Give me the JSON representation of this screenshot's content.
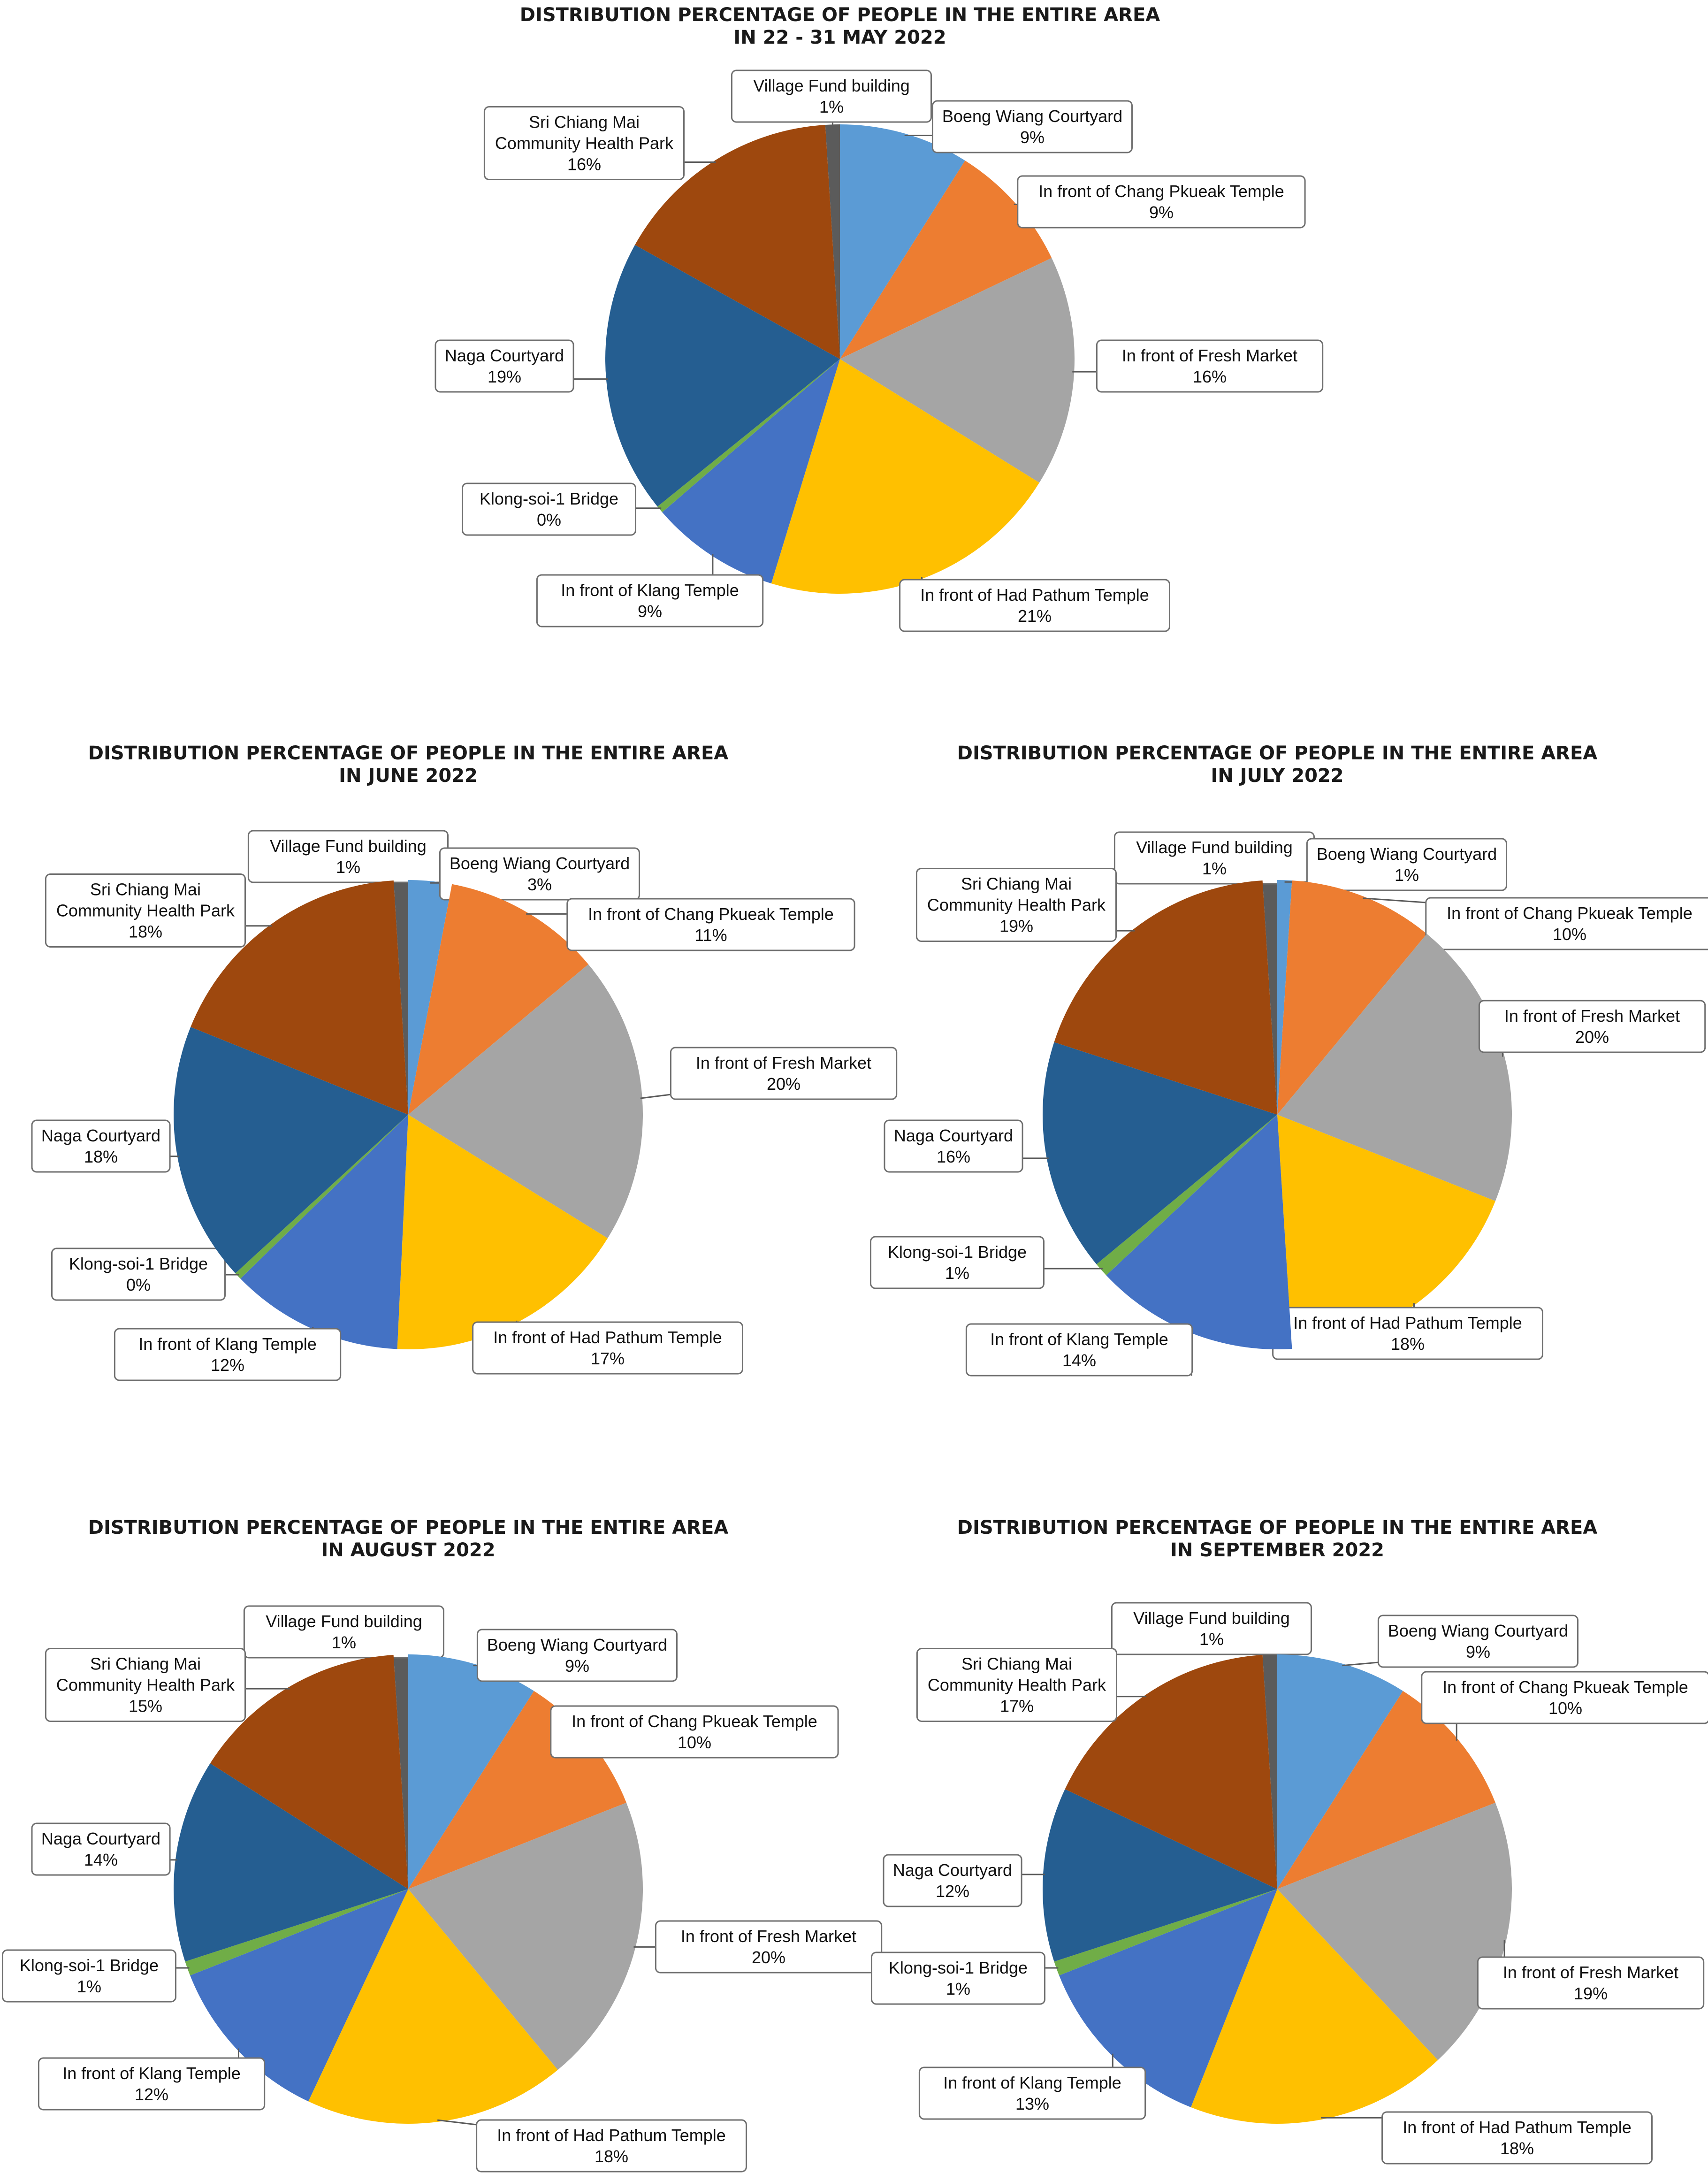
{
  "colors": {
    "Village Fund building": "#5b5b5b",
    "Boeng Wiang Courtyard": "#5b9bd5",
    "In front of Chang Pkueak Temple": "#ed7d31",
    "In front of Fresh Market": "#a5a5a5",
    "In front of Had Pathum Temple": "#ffc000",
    "In front of Klang Temple": "#4472c4",
    "Klong-soi-1 Bridge": "#70ad47",
    "Naga Courtyard": "#255e91",
    "Sri Chiang Mai Community Health Park": "#9e480e"
  },
  "chart_data": [
    {
      "type": "pie",
      "title": [
        "DISTRIBUTION PERCENTAGE OF PEOPLE IN THE ENTIRE AREA",
        "IN 22 - 31 MAY 2022"
      ],
      "slices": [
        {
          "name": "Village Fund building",
          "label": [
            "Village Fund building"
          ],
          "pct_text": "1%",
          "value": 1
        },
        {
          "name": "Boeng Wiang Courtyard",
          "label": [
            "Boeng Wiang Courtyard"
          ],
          "pct_text": "9%",
          "value": 9
        },
        {
          "name": "In front of Chang Pkueak Temple",
          "label": [
            "In front of Chang Pkueak Temple"
          ],
          "pct_text": "9%",
          "value": 9
        },
        {
          "name": "In front of Fresh Market",
          "label": [
            "In front of Fresh Market"
          ],
          "pct_text": "16%",
          "value": 16
        },
        {
          "name": "In front of Had Pathum Temple",
          "label": [
            "In front of Had Pathum Temple"
          ],
          "pct_text": "21%",
          "value": 21
        },
        {
          "name": "In front of Klang Temple",
          "label": [
            "In front of Klang Temple"
          ],
          "pct_text": "9%",
          "value": 9
        },
        {
          "name": "Klong-soi-1 Bridge",
          "label": [
            "Klong-soi-1 Bridge"
          ],
          "pct_text": "0%",
          "value": 0.5
        },
        {
          "name": "Naga Courtyard",
          "label": [
            "Naga Courtyard"
          ],
          "pct_text": "19%",
          "value": 19
        },
        {
          "name": "Sri Chiang Mai Community Health Park",
          "label": [
            "Sri Chiang Mai",
            "Community Health Park"
          ],
          "pct_text": "16%",
          "value": 16
        }
      ]
    },
    {
      "type": "pie",
      "title": [
        "DISTRIBUTION PERCENTAGE OF PEOPLE IN THE ENTIRE AREA",
        "IN JUNE 2022"
      ],
      "slices": [
        {
          "name": "Village Fund building",
          "label": [
            "Village Fund building"
          ],
          "pct_text": "1%",
          "value": 1
        },
        {
          "name": "Boeng Wiang Courtyard",
          "label": [
            "Boeng Wiang Courtyard"
          ],
          "pct_text": "3%",
          "value": 3
        },
        {
          "name": "In front of Chang Pkueak Temple",
          "label": [
            "In front of Chang Pkueak Temple"
          ],
          "pct_text": "11%",
          "value": 11
        },
        {
          "name": "In front of Fresh Market",
          "label": [
            "In front of Fresh Market"
          ],
          "pct_text": "20%",
          "value": 20
        },
        {
          "name": "In front of Had Pathum Temple",
          "label": [
            "In front of Had Pathum Temple"
          ],
          "pct_text": "17%",
          "value": 17
        },
        {
          "name": "In front of Klang Temple",
          "label": [
            "In front of Klang Temple"
          ],
          "pct_text": "12%",
          "value": 12
        },
        {
          "name": "Klong-soi-1 Bridge",
          "label": [
            "Klong-soi-1 Bridge"
          ],
          "pct_text": "0%",
          "value": 0.5
        },
        {
          "name": "Naga Courtyard",
          "label": [
            "Naga Courtyard"
          ],
          "pct_text": "18%",
          "value": 18
        },
        {
          "name": "Sri Chiang Mai Community Health Park",
          "label": [
            "Sri Chiang Mai",
            "Community Health Park"
          ],
          "pct_text": "18%",
          "value": 18
        }
      ]
    },
    {
      "type": "pie",
      "title": [
        "DISTRIBUTION PERCENTAGE OF PEOPLE IN THE ENTIRE AREA",
        "IN JULY 2022"
      ],
      "slices": [
        {
          "name": "Village Fund building",
          "label": [
            "Village Fund building"
          ],
          "pct_text": "1%",
          "value": 1
        },
        {
          "name": "Boeng Wiang Courtyard",
          "label": [
            "Boeng Wiang Courtyard"
          ],
          "pct_text": "1%",
          "value": 1
        },
        {
          "name": "In front of Chang Pkueak Temple",
          "label": [
            "In front of Chang Pkueak Temple"
          ],
          "pct_text": "10%",
          "value": 10
        },
        {
          "name": "In front of Fresh Market",
          "label": [
            "In front of Fresh Market"
          ],
          "pct_text": "20%",
          "value": 20
        },
        {
          "name": "In front of Had Pathum Temple",
          "label": [
            "In front of Had Pathum Temple"
          ],
          "pct_text": "18%",
          "value": 18
        },
        {
          "name": "In front of Klang Temple",
          "label": [
            "In front of Klang Temple"
          ],
          "pct_text": "14%",
          "value": 14
        },
        {
          "name": "Klong-soi-1 Bridge",
          "label": [
            "Klong-soi-1 Bridge"
          ],
          "pct_text": "1%",
          "value": 1
        },
        {
          "name": "Naga Courtyard",
          "label": [
            "Naga Courtyard"
          ],
          "pct_text": "16%",
          "value": 16
        },
        {
          "name": "Sri Chiang Mai Community Health Park",
          "label": [
            "Sri Chiang Mai",
            "Community Health Park"
          ],
          "pct_text": "19%",
          "value": 19
        }
      ]
    },
    {
      "type": "pie",
      "title": [
        "DISTRIBUTION PERCENTAGE OF PEOPLE IN THE ENTIRE AREA",
        "IN AUGUST 2022"
      ],
      "slices": [
        {
          "name": "Village Fund building",
          "label": [
            "Village Fund building"
          ],
          "pct_text": "1%",
          "value": 1
        },
        {
          "name": "Boeng Wiang Courtyard",
          "label": [
            "Boeng Wiang Courtyard"
          ],
          "pct_text": "9%",
          "value": 9
        },
        {
          "name": "In front of Chang Pkueak Temple",
          "label": [
            "In front of Chang Pkueak Temple"
          ],
          "pct_text": "10%",
          "value": 10
        },
        {
          "name": "In front of Fresh Market",
          "label": [
            "In front of Fresh Market"
          ],
          "pct_text": "20%",
          "value": 20
        },
        {
          "name": "In front of Had Pathum Temple",
          "label": [
            "In front of Had Pathum Temple"
          ],
          "pct_text": "18%",
          "value": 18
        },
        {
          "name": "In front of Klang Temple",
          "label": [
            "In front of Klang Temple"
          ],
          "pct_text": "12%",
          "value": 12
        },
        {
          "name": "Klong-soi-1 Bridge",
          "label": [
            "Klong-soi-1 Bridge"
          ],
          "pct_text": "1%",
          "value": 1
        },
        {
          "name": "Naga Courtyard",
          "label": [
            "Naga Courtyard"
          ],
          "pct_text": "14%",
          "value": 14
        },
        {
          "name": "Sri Chiang Mai Community Health Park",
          "label": [
            "Sri Chiang Mai",
            "Community Health Park"
          ],
          "pct_text": "15%",
          "value": 15
        }
      ]
    },
    {
      "type": "pie",
      "title": [
        "DISTRIBUTION PERCENTAGE OF PEOPLE IN THE ENTIRE AREA",
        "IN SEPTEMBER 2022"
      ],
      "slices": [
        {
          "name": "Village Fund building",
          "label": [
            "Village Fund building"
          ],
          "pct_text": "1%",
          "value": 1
        },
        {
          "name": "Boeng Wiang Courtyard",
          "label": [
            "Boeng Wiang Courtyard"
          ],
          "pct_text": "9%",
          "value": 9
        },
        {
          "name": "In front of Chang Pkueak Temple",
          "label": [
            "In front of Chang Pkueak Temple"
          ],
          "pct_text": "10%",
          "value": 10
        },
        {
          "name": "In front of Fresh Market",
          "label": [
            "In front of Fresh Market"
          ],
          "pct_text": "19%",
          "value": 19
        },
        {
          "name": "In front of Had Pathum Temple",
          "label": [
            "In front of Had Pathum Temple"
          ],
          "pct_text": "18%",
          "value": 18
        },
        {
          "name": "In front of Klang Temple",
          "label": [
            "In front of Klang Temple"
          ],
          "pct_text": "13%",
          "value": 13
        },
        {
          "name": "Klong-soi-1 Bridge",
          "label": [
            "Klong-soi-1 Bridge"
          ],
          "pct_text": "1%",
          "value": 1
        },
        {
          "name": "Naga Courtyard",
          "label": [
            "Naga Courtyard"
          ],
          "pct_text": "12%",
          "value": 12
        },
        {
          "name": "Sri Chiang Mai Community Health Park",
          "label": [
            "Sri Chiang Mai",
            "Community Health Park"
          ],
          "pct_text": "17%",
          "value": 17
        }
      ]
    }
  ]
}
